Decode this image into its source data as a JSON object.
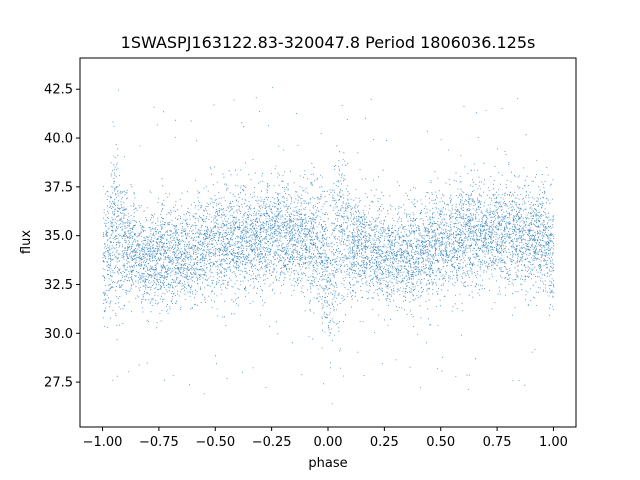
{
  "chart_data": {
    "type": "scatter",
    "title": "1SWASPJ163122.83-320047.8 Period 1806036.125s",
    "xlabel": "phase",
    "ylabel": "flux",
    "xlim": [
      -1.1,
      1.1
    ],
    "ylim": [
      25.2,
      44.1
    ],
    "xticks": [
      -1.0,
      -0.75,
      -0.5,
      -0.25,
      0.0,
      0.25,
      0.5,
      0.75,
      1.0
    ],
    "xtick_labels": [
      "−1.00",
      "−0.75",
      "−0.50",
      "−0.25",
      "0.00",
      "0.25",
      "0.50",
      "0.75",
      "1.00"
    ],
    "yticks": [
      27.5,
      30.0,
      32.5,
      35.0,
      37.5,
      40.0,
      42.5
    ],
    "ytick_labels": [
      "27.5",
      "30.0",
      "32.5",
      "35.0",
      "37.5",
      "40.0",
      "42.5"
    ],
    "grid": false,
    "marker_color": "#1f77b4",
    "series": [
      {
        "profile": {
          "phase": [
            -1.0,
            -0.95,
            -0.9,
            -0.85,
            -0.8,
            -0.75,
            -0.7,
            -0.65,
            -0.6,
            -0.55,
            -0.5,
            -0.45,
            -0.4,
            -0.35,
            -0.3,
            -0.25,
            -0.2,
            -0.15,
            -0.1,
            -0.05,
            0.0,
            0.05,
            0.1,
            0.15,
            0.2,
            0.25,
            0.3,
            0.35,
            0.4,
            0.45,
            0.5,
            0.55,
            0.6,
            0.65,
            0.7,
            0.75,
            0.8,
            0.85,
            0.9,
            0.95,
            1.0
          ],
          "mean_flux": [
            33.5,
            35.5,
            34.4,
            34.2,
            33.7,
            34.0,
            33.8,
            34.1,
            34.2,
            34.4,
            34.5,
            34.6,
            34.9,
            34.8,
            35.0,
            35.1,
            35.2,
            35.0,
            34.8,
            34.9,
            33.2,
            35.6,
            34.6,
            34.4,
            34.2,
            33.9,
            34.1,
            33.8,
            34.0,
            34.3,
            34.6,
            34.7,
            34.9,
            35.0,
            35.1,
            35.3,
            35.1,
            34.9,
            34.8,
            35.0,
            34.0
          ],
          "spread": [
            1.6,
            2.2,
            1.4,
            1.2,
            1.2,
            1.3,
            1.2,
            1.2,
            1.3,
            1.3,
            1.4,
            1.3,
            1.4,
            1.3,
            1.3,
            1.4,
            1.4,
            1.3,
            1.3,
            1.4,
            2.0,
            2.2,
            1.4,
            1.2,
            1.3,
            1.2,
            1.2,
            1.2,
            1.2,
            1.3,
            1.4,
            1.3,
            1.4,
            1.3,
            1.3,
            1.4,
            1.4,
            1.3,
            1.3,
            1.4,
            1.6
          ]
        }
      }
    ]
  }
}
